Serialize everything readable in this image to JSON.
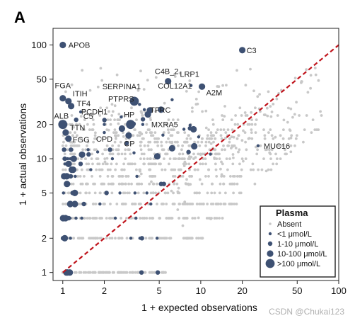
{
  "watermark": "CSDN @Chukai123",
  "chart_data": {
    "type": "scatter",
    "panel_letter": "A",
    "xlabel": "1 + expected observations",
    "ylabel": "1 + actual observations",
    "xscale": "log",
    "yscale": "log",
    "xlim": [
      0.85,
      100
    ],
    "ylim": [
      0.85,
      140
    ],
    "xticks": [
      1,
      2,
      5,
      10,
      20,
      50,
      100
    ],
    "xtick_labels": [
      "1",
      "2",
      "5",
      "10",
      "20",
      "50",
      "100"
    ],
    "yticks": [
      1,
      2,
      5,
      10,
      20,
      50,
      100
    ],
    "ytick_labels": [
      "1",
      "2",
      "5",
      "10",
      "20",
      "50",
      "100"
    ],
    "reference_line": {
      "style": "dashed",
      "color": "#c0141c",
      "x": [
        1,
        100
      ],
      "y": [
        1,
        100
      ]
    },
    "colors": {
      "absent": "#c8c8c8",
      "present": "#3e5173",
      "label_line": "#9a86b5"
    },
    "legend": {
      "title": "Plasma",
      "placement": "bottom-right",
      "entries": [
        {
          "label": "Absent",
          "tier": 0
        },
        {
          "label": "<1 μmol/L",
          "tier": 1
        },
        {
          "label": "1-10 μmol/L",
          "tier": 2
        },
        {
          "label": "10-100 μmol/L",
          "tier": 3
        },
        {
          "label": ">100 μmol/L",
          "tier": 4
        }
      ]
    },
    "labeled_points": [
      {
        "name": "APOB",
        "x": 1.0,
        "y": 100,
        "tier": 3
      },
      {
        "name": "C3",
        "x": 20,
        "y": 90,
        "tier": 3
      },
      {
        "name": "C4B_2",
        "x": 5.8,
        "y": 48,
        "tier": 3
      },
      {
        "name": "LRP1",
        "x": 8.5,
        "y": 44,
        "tier": 1
      },
      {
        "name": "A2M",
        "x": 10.2,
        "y": 43,
        "tier": 3
      },
      {
        "name": "FGA",
        "x": 1.0,
        "y": 34,
        "tier": 3
      },
      {
        "name": "ITIH",
        "x": 1.1,
        "y": 32,
        "tier": 3
      },
      {
        "name": "TF4",
        "x": 1.15,
        "y": 29,
        "tier": 3
      },
      {
        "name": "SERPINA1",
        "x": 3.3,
        "y": 32,
        "tier": 4
      },
      {
        "name": "PTPRS",
        "x": 3.6,
        "y": 30,
        "tier": 1
      },
      {
        "name": "COL12A1",
        "x": 6.2,
        "y": 33,
        "tier": 1
      },
      {
        "name": "TFRC",
        "x": 3.9,
        "y": 27,
        "tier": 1
      },
      {
        "name": "C5",
        "x": 1.25,
        "y": 22,
        "tier": 2
      },
      {
        "name": "ALB",
        "x": 1.0,
        "y": 20,
        "tier": 4
      },
      {
        "name": "TTN",
        "x": 1.05,
        "y": 17,
        "tier": 3
      },
      {
        "name": "FGG",
        "x": 1.1,
        "y": 15,
        "tier": 3
      },
      {
        "name": "PCDH1",
        "x": 2.0,
        "y": 20,
        "tier": 1
      },
      {
        "name": "HP",
        "x": 3.1,
        "y": 20,
        "tier": 4
      },
      {
        "name": "CP",
        "x": 3.0,
        "y": 16,
        "tier": 3
      },
      {
        "name": "MXRA5",
        "x": 3.8,
        "y": 20,
        "tier": 1
      },
      {
        "name": "CPD",
        "x": 2.0,
        "y": 17,
        "tier": 1
      },
      {
        "name": "MUC16",
        "x": 26,
        "y": 13,
        "tier": 1
      }
    ]
  }
}
